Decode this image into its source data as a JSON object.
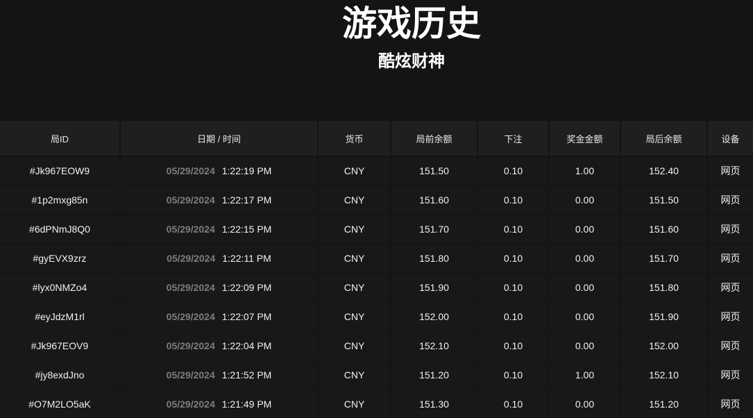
{
  "header": {
    "title": "游戏历史",
    "subtitle": "酷炫财神"
  },
  "table": {
    "columns": [
      "局ID",
      "日期 / 时间",
      "货币",
      "局前余额",
      "下注",
      "奖金金额",
      "局后余额",
      "设备"
    ],
    "rows": [
      {
        "id": "#Jk967EOW9",
        "date": "05/29/2024",
        "time": "1:22:19 PM",
        "currency": "CNY",
        "before": "151.50",
        "bet": "0.10",
        "win": "1.00",
        "after": "152.40",
        "device": "网页"
      },
      {
        "id": "#1p2mxg85n",
        "date": "05/29/2024",
        "time": "1:22:17 PM",
        "currency": "CNY",
        "before": "151.60",
        "bet": "0.10",
        "win": "0.00",
        "after": "151.50",
        "device": "网页"
      },
      {
        "id": "#6dPNmJ8Q0",
        "date": "05/29/2024",
        "time": "1:22:15 PM",
        "currency": "CNY",
        "before": "151.70",
        "bet": "0.10",
        "win": "0.00",
        "after": "151.60",
        "device": "网页"
      },
      {
        "id": "#gyEVX9zrz",
        "date": "05/29/2024",
        "time": "1:22:11 PM",
        "currency": "CNY",
        "before": "151.80",
        "bet": "0.10",
        "win": "0.00",
        "after": "151.70",
        "device": "网页"
      },
      {
        "id": "#lyx0NMZo4",
        "date": "05/29/2024",
        "time": "1:22:09 PM",
        "currency": "CNY",
        "before": "151.90",
        "bet": "0.10",
        "win": "0.00",
        "after": "151.80",
        "device": "网页"
      },
      {
        "id": "#eyJdzM1rl",
        "date": "05/29/2024",
        "time": "1:22:07 PM",
        "currency": "CNY",
        "before": "152.00",
        "bet": "0.10",
        "win": "0.00",
        "after": "151.90",
        "device": "网页"
      },
      {
        "id": "#Jk967EOV9",
        "date": "05/29/2024",
        "time": "1:22:04 PM",
        "currency": "CNY",
        "before": "152.10",
        "bet": "0.10",
        "win": "0.00",
        "after": "152.00",
        "device": "网页"
      },
      {
        "id": "#jy8exdJno",
        "date": "05/29/2024",
        "time": "1:21:52 PM",
        "currency": "CNY",
        "before": "151.20",
        "bet": "0.10",
        "win": "1.00",
        "after": "152.10",
        "device": "网页"
      },
      {
        "id": "#O7M2LO5aK",
        "date": "05/29/2024",
        "time": "1:21:49 PM",
        "currency": "CNY",
        "before": "151.30",
        "bet": "0.10",
        "win": "0.00",
        "after": "151.20",
        "device": "网页"
      }
    ]
  }
}
